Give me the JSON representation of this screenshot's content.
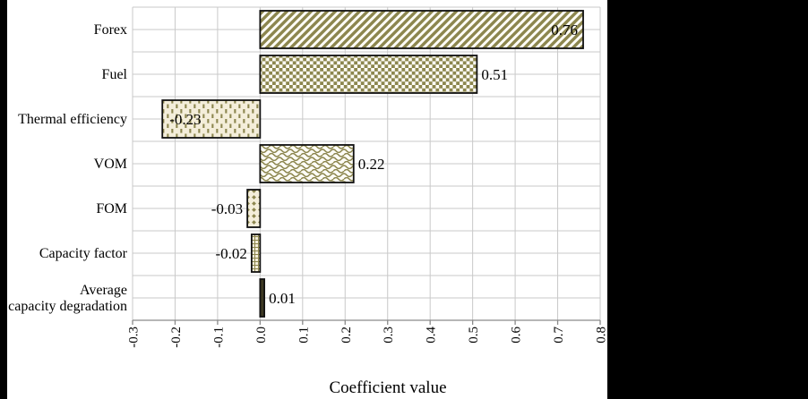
{
  "chart_data": {
    "type": "bar",
    "orientation": "horizontal",
    "xlabel": "Coefficient value",
    "categories": [
      "Forex",
      "Fuel",
      "Thermal efficiency",
      "VOM",
      "FOM",
      "Capacity factor",
      "Average\ncapacity degradation"
    ],
    "values": [
      0.76,
      0.51,
      -0.23,
      0.22,
      -0.03,
      -0.02,
      0.01
    ],
    "value_labels": [
      "0.76",
      "0.51",
      "-0.23",
      "0.22",
      "-0.03",
      "-0.02",
      "0.01"
    ],
    "label_placement": [
      "inside-end",
      "outside-end",
      "inside-start",
      "outside-end",
      "outside-start",
      "outside-start",
      "outside-end"
    ],
    "bar_patterns": [
      "diagonal-stripes",
      "checkerboard",
      "vertical-dashes",
      "waves",
      "diamond-dots",
      "small-grid",
      "solid"
    ],
    "xlim": [
      -0.3,
      0.8
    ],
    "xticks": [
      "-0.3",
      "-0.2",
      "-0.1",
      "0.0",
      "0.1",
      "0.2",
      "0.3",
      "0.4",
      "0.5",
      "0.6",
      "0.7",
      "0.8"
    ],
    "xtick_values": [
      -0.3,
      -0.2,
      -0.1,
      0.0,
      0.1,
      0.2,
      0.3,
      0.4,
      0.5,
      0.6,
      0.7,
      0.8
    ],
    "grid": true,
    "legend": false,
    "colors": {
      "pattern": "#8c864e",
      "pattern_bg_light": "#fdfcf6",
      "pattern_bg_cream": "#f4eeda",
      "solid_fill": "#3d3923",
      "bar_border": "#111111",
      "gridline": "#c9c9c9",
      "axis": "#8a8a8a",
      "text": "#000000",
      "band": "#000000"
    }
  }
}
